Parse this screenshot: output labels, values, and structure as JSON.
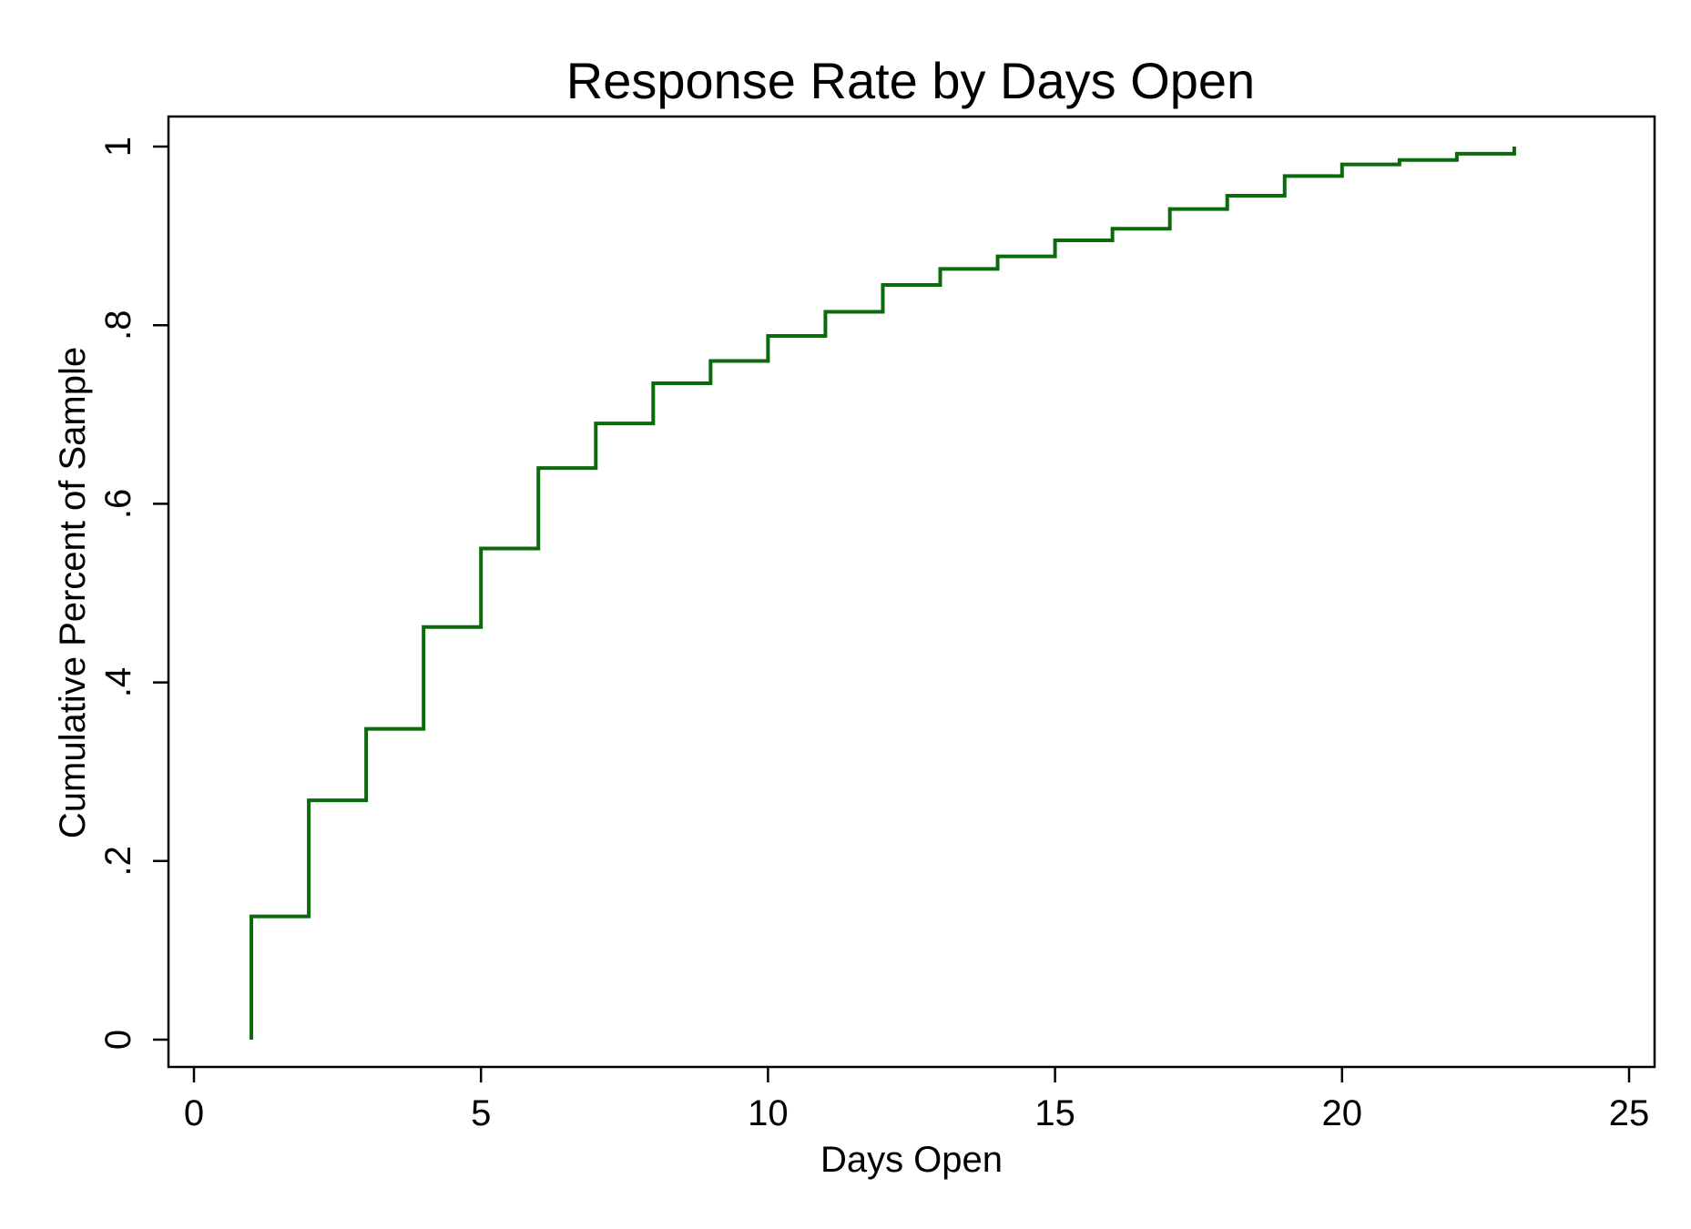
{
  "chart_data": {
    "type": "line",
    "subtype": "step",
    "title": "Response Rate by Days Open",
    "xlabel": "Days Open",
    "ylabel": "Cumulative Percent of Sample",
    "xlim": [
      0,
      25
    ],
    "ylim": [
      0,
      1
    ],
    "xticks": [
      0,
      5,
      10,
      15,
      20,
      25
    ],
    "xtick_labels": [
      "0",
      "5",
      "10",
      "15",
      "20",
      "25"
    ],
    "yticks": [
      0,
      0.2,
      0.4,
      0.6,
      0.8,
      1
    ],
    "ytick_labels": [
      "0",
      ".2",
      ".4",
      ".6",
      ".8",
      "1"
    ],
    "grid": false,
    "legend": "none",
    "line_color": "#0b6a0b",
    "series": [
      {
        "x": [
          1,
          1,
          2,
          3,
          4,
          5,
          6,
          7,
          8,
          9,
          10,
          11,
          12,
          13,
          14,
          15,
          16,
          17,
          18,
          19,
          20,
          21,
          22,
          23
        ],
        "y": [
          0,
          0.138,
          0.268,
          0.348,
          0.462,
          0.55,
          0.64,
          0.69,
          0.735,
          0.76,
          0.788,
          0.815,
          0.845,
          0.863,
          0.877,
          0.895,
          0.908,
          0.93,
          0.945,
          0.967,
          0.98,
          0.985,
          0.992,
          1.0
        ]
      }
    ]
  }
}
